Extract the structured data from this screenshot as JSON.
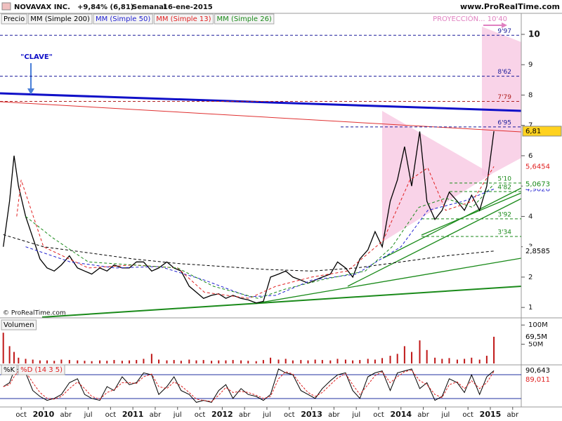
{
  "header": {
    "title": "NOVAVAX INC.",
    "change": "+9,84% (6,81)",
    "period": "Semanal",
    "date": "16-ene-2015",
    "site": "www.ProRealTime.com",
    "copyright": "© ProRealTime.com"
  },
  "chart_data": [
    {
      "type": "line",
      "annotations": [
        "\"CLAVE\"",
        "PROYECCIÓN... 10'40"
      ],
      "xlim": [
        2009.513,
        2015.346
      ],
      "ylim": [
        0.68,
        10.67
      ],
      "yticks": [
        1,
        2,
        3,
        4,
        5,
        6,
        7,
        8,
        9,
        10
      ],
      "x": [
        2009.55,
        2009.62,
        2009.67,
        2009.72,
        2009.8,
        2009.88,
        2009.96,
        2010.04,
        2010.12,
        2010.2,
        2010.29,
        2010.38,
        2010.46,
        2010.54,
        2010.63,
        2010.71,
        2010.79,
        2010.88,
        2010.96,
        2011.04,
        2011.12,
        2011.21,
        2011.29,
        2011.38,
        2011.46,
        2011.54,
        2011.63,
        2011.71,
        2011.79,
        2011.88,
        2011.96,
        2012.04,
        2012.12,
        2012.21,
        2012.29,
        2012.38,
        2012.46,
        2012.54,
        2012.63,
        2012.71,
        2012.79,
        2012.88,
        2012.96,
        2013.04,
        2013.12,
        2013.21,
        2013.29,
        2013.38,
        2013.46,
        2013.54,
        2013.63,
        2013.71,
        2013.79,
        2013.88,
        2013.96,
        2014.04,
        2014.12,
        2014.21,
        2014.29,
        2014.38,
        2014.46,
        2014.54,
        2014.63,
        2014.71,
        2014.79,
        2014.88,
        2014.96,
        2015.04
      ],
      "series": [
        {
          "name": "Precio",
          "color": "#000000",
          "last_label": "6,81",
          "label_background": "#ffd21f",
          "values": [
            3.0,
            4.5,
            6.0,
            5.0,
            4.0,
            3.3,
            2.6,
            2.3,
            2.2,
            2.4,
            2.7,
            2.3,
            2.2,
            2.1,
            2.3,
            2.2,
            2.4,
            2.3,
            2.3,
            2.5,
            2.5,
            2.2,
            2.3,
            2.5,
            2.3,
            2.2,
            1.7,
            1.5,
            1.3,
            1.4,
            1.45,
            1.3,
            1.4,
            1.3,
            1.25,
            1.15,
            1.2,
            2.0,
            2.1,
            2.2,
            2.0,
            1.9,
            1.8,
            1.9,
            2.0,
            2.1,
            2.5,
            2.3,
            2.0,
            2.6,
            2.9,
            3.5,
            3.0,
            4.5,
            5.2,
            6.3,
            5.0,
            6.8,
            4.5,
            3.9,
            4.2,
            4.8,
            4.5,
            4.2,
            4.7,
            4.2,
            5.0,
            6.81
          ]
        },
        {
          "name": "MM (Simple 200)",
          "color": "#000000",
          "last_label": "2,8585",
          "x": [
            2009.55,
            2010.0,
            2010.5,
            2011.0,
            2011.5,
            2012.0,
            2012.5,
            2013.0,
            2013.5,
            2014.0,
            2014.5,
            2015.04
          ],
          "values": [
            3.4,
            3.0,
            2.8,
            2.6,
            2.45,
            2.35,
            2.25,
            2.2,
            2.3,
            2.5,
            2.7,
            2.8585
          ]
        },
        {
          "name": "MM (Simple 50)",
          "color": "#1f1fd0",
          "last_label": "4,9026",
          "x": [
            2009.8,
            2010.3,
            2010.8,
            2011.3,
            2011.8,
            2012.3,
            2012.6,
            2013.0,
            2013.5,
            2014.0,
            2014.3,
            2014.7,
            2015.04
          ],
          "values": [
            3.0,
            2.5,
            2.3,
            2.35,
            1.9,
            1.35,
            1.4,
            1.9,
            2.1,
            3.0,
            4.2,
            4.5,
            4.9026
          ]
        },
        {
          "name": "MM (Simple 13)",
          "color": "#e02020",
          "last_label": "5,6454",
          "x": [
            2009.7,
            2009.75,
            2010.0,
            2010.5,
            2011.0,
            2011.5,
            2011.8,
            2012.3,
            2012.6,
            2013.0,
            2013.4,
            2013.8,
            2014.1,
            2014.3,
            2014.5,
            2014.8,
            2015.04
          ],
          "values": [
            4.0,
            5.2,
            3.0,
            2.3,
            2.4,
            2.3,
            1.5,
            1.3,
            1.7,
            2.0,
            2.2,
            3.2,
            5.2,
            5.6,
            4.2,
            4.5,
            5.6454
          ]
        },
        {
          "name": "MM (Simple 26)",
          "color": "#1a8a1a",
          "last_label": "5,0673",
          "x": [
            2009.8,
            2010.1,
            2010.5,
            2011.0,
            2011.5,
            2011.9,
            2012.4,
            2012.7,
            2013.1,
            2013.6,
            2013.9,
            2014.2,
            2014.5,
            2014.8,
            2015.04
          ],
          "values": [
            4.0,
            3.3,
            2.5,
            2.4,
            2.3,
            1.7,
            1.3,
            1.6,
            1.9,
            2.2,
            3.0,
            4.3,
            4.6,
            4.3,
            5.0673
          ]
        }
      ],
      "levels": [
        {
          "value": 9.97,
          "label": "9'97",
          "color": "#1a1a9a"
        },
        {
          "value": 8.62,
          "label": "8'62",
          "color": "#1a1a9a"
        },
        {
          "value": 7.79,
          "label": "7'79",
          "color": "#b02020"
        },
        {
          "value": 6.95,
          "label": "6'95",
          "color": "#1a1a9a"
        },
        {
          "value": 5.1,
          "label": "5'10",
          "color": "#1a8a1a"
        },
        {
          "value": 4.82,
          "label": "4'82",
          "color": "#1a8a1a"
        },
        {
          "value": 3.92,
          "label": "3'92",
          "color": "#1a8a1a"
        },
        {
          "value": 3.34,
          "label": "3'34",
          "color": "#1a8a1a"
        }
      ]
    },
    {
      "type": "bar",
      "title": "Volumen",
      "color": "#c01818",
      "last_label": "69,5M",
      "ylim": [
        0,
        115
      ],
      "yticks": [
        {
          "value": 50,
          "label": "50M"
        },
        {
          "value": 100,
          "label": "100M"
        }
      ],
      "values": [
        80,
        45,
        30,
        15,
        12,
        10,
        8,
        8,
        7,
        10,
        9,
        8,
        7,
        6,
        8,
        7,
        9,
        7,
        8,
        9,
        12,
        25,
        10,
        8,
        9,
        7,
        10,
        8,
        9,
        7,
        8,
        8,
        9,
        8,
        7,
        6,
        9,
        15,
        10,
        12,
        8,
        9,
        8,
        10,
        9,
        8,
        12,
        10,
        8,
        9,
        12,
        10,
        14,
        20,
        25,
        45,
        30,
        60,
        35,
        15,
        12,
        14,
        10,
        12,
        15,
        10,
        20,
        69.5
      ]
    },
    {
      "type": "line",
      "ylim": [
        0,
        100
      ],
      "xlim": [
        2009.513,
        2015.346
      ],
      "xticks": [
        {
          "value": 2009.75,
          "label": "oct"
        },
        {
          "value": 2010,
          "label": "2010"
        },
        {
          "value": 2010.25,
          "label": "abr"
        },
        {
          "value": 2010.5,
          "label": "jul"
        },
        {
          "value": 2010.75,
          "label": "oct"
        },
        {
          "value": 2011,
          "label": "2011"
        },
        {
          "value": 2011.25,
          "label": "abr"
        },
        {
          "value": 2011.5,
          "label": "jul"
        },
        {
          "value": 2011.75,
          "label": "oct"
        },
        {
          "value": 2012,
          "label": "2012"
        },
        {
          "value": 2012.25,
          "label": "abr"
        },
        {
          "value": 2012.5,
          "label": "jul"
        },
        {
          "value": 2012.75,
          "label": "oct"
        },
        {
          "value": 2013,
          "label": "2013"
        },
        {
          "value": 2013.25,
          "label": "abr"
        },
        {
          "value": 2013.5,
          "label": "jul"
        },
        {
          "value": 2013.75,
          "label": "oct"
        },
        {
          "value": 2014,
          "label": "2014"
        },
        {
          "value": 2014.25,
          "label": "abr"
        },
        {
          "value": 2014.5,
          "label": "jul"
        },
        {
          "value": 2014.75,
          "label": "oct"
        },
        {
          "value": 2015,
          "label": "2015"
        },
        {
          "value": 2015.25,
          "label": "abr"
        }
      ],
      "series": [
        {
          "name": "%K",
          "color": "#000000",
          "last_label": "90,643",
          "values": [
            50,
            60,
            90,
            95,
            85,
            40,
            25,
            15,
            20,
            30,
            60,
            70,
            30,
            20,
            15,
            50,
            40,
            75,
            55,
            60,
            85,
            80,
            30,
            50,
            75,
            40,
            30,
            10,
            15,
            10,
            40,
            55,
            20,
            45,
            30,
            25,
            15,
            30,
            95,
            85,
            80,
            40,
            30,
            20,
            45,
            65,
            80,
            85,
            40,
            20,
            75,
            85,
            90,
            40,
            85,
            90,
            95,
            45,
            60,
            15,
            25,
            70,
            60,
            35,
            80,
            30,
            75,
            90.643
          ]
        },
        {
          "name": "%D (14 3 5)",
          "color": "#e02020",
          "last_label": "89,011",
          "values": [
            50,
            55,
            75,
            90,
            88,
            60,
            35,
            20,
            18,
            25,
            45,
            62,
            45,
            25,
            18,
            35,
            42,
            60,
            60,
            58,
            75,
            82,
            50,
            45,
            62,
            52,
            35,
            18,
            15,
            12,
            28,
            48,
            35,
            38,
            35,
            28,
            20,
            25,
            70,
            88,
            82,
            55,
            35,
            25,
            35,
            55,
            72,
            83,
            55,
            30,
            55,
            78,
            88,
            60,
            75,
            88,
            92,
            65,
            55,
            30,
            22,
            55,
            62,
            45,
            65,
            45,
            60,
            89.011
          ]
        }
      ]
    }
  ]
}
